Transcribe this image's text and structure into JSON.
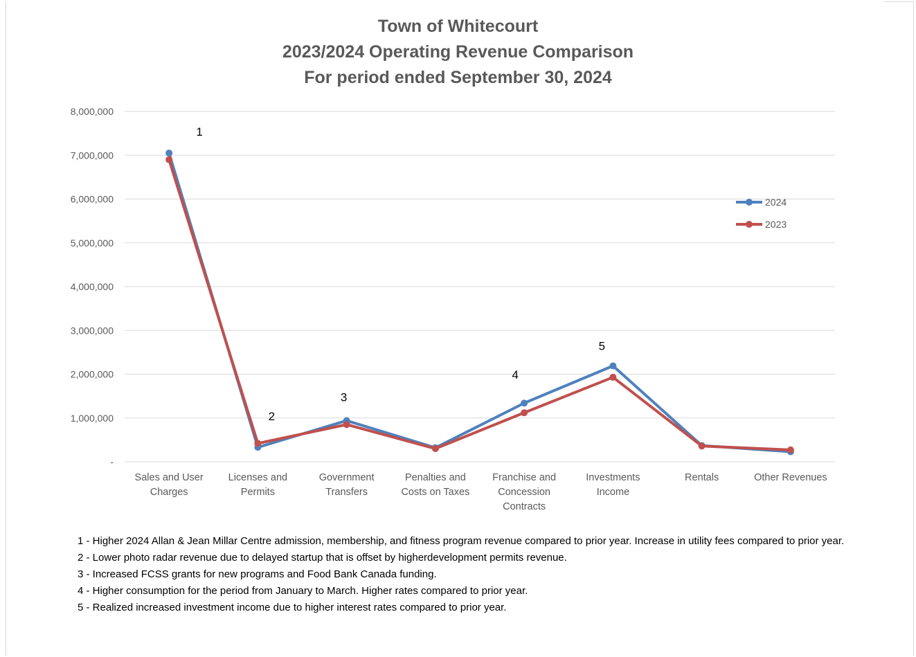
{
  "chart_data": {
    "type": "line",
    "title": [
      "Town of Whitecourt",
      "2023/2024 Operating Revenue Comparison",
      "For period ended September 30, 2024"
    ],
    "categories": [
      [
        "Sales and User",
        "Charges"
      ],
      [
        "Licenses and",
        "Permits"
      ],
      [
        "Government",
        "Transfers"
      ],
      [
        "Penalties and",
        "Costs on Taxes"
      ],
      [
        "Franchise and",
        "Concession",
        "Contracts"
      ],
      [
        "Investments",
        "Income"
      ],
      [
        "Rentals"
      ],
      [
        "Other Revenues"
      ]
    ],
    "series": [
      {
        "name": "2024",
        "color": "#4f81bd",
        "values": [
          7050000,
          330000,
          940000,
          320000,
          1340000,
          2190000,
          370000,
          230000
        ]
      },
      {
        "name": "2023",
        "color": "#c0504d",
        "values": [
          6900000,
          420000,
          850000,
          300000,
          1120000,
          1930000,
          360000,
          270000
        ]
      }
    ],
    "ylim": [
      0,
      8000000
    ],
    "yticks": [
      0,
      1000000,
      2000000,
      3000000,
      4000000,
      5000000,
      6000000,
      7000000,
      8000000
    ],
    "ytick_labels": [
      "-",
      "1,000,000",
      "2,000,000",
      "3,000,000",
      "4,000,000",
      "5,000,000",
      "6,000,000",
      "7,000,000",
      "8,000,000"
    ],
    "grid": true,
    "legend_position": "right",
    "annotations": [
      {
        "label": "1",
        "category_index": 0,
        "y": 7450000
      },
      {
        "label": "2",
        "category_index": 1,
        "y": 950000
      },
      {
        "label": "3",
        "category_index": 2,
        "y": 1380000
      },
      {
        "label": "4",
        "category_index": 4,
        "y": 1900000
      },
      {
        "label": "5",
        "category_index": 5,
        "y": 2550000
      }
    ]
  },
  "notes": [
    "1 - Higher 2024 Allan & Jean Millar Centre admission, membership, and fitness program revenue compared to prior year. Increase in utility fees compared to prior year.",
    "2 -  Lower photo radar revenue due to delayed startup that is offset by higherdevelopment permits revenue.",
    "3 - Increased FCSS grants for new programs and Food Bank Canada funding.",
    "4 - Higher consumption for the period from January to March. Higher rates compared to prior year.",
    "5 - Realized increased investment income due to higher interest rates compared to prior year."
  ]
}
